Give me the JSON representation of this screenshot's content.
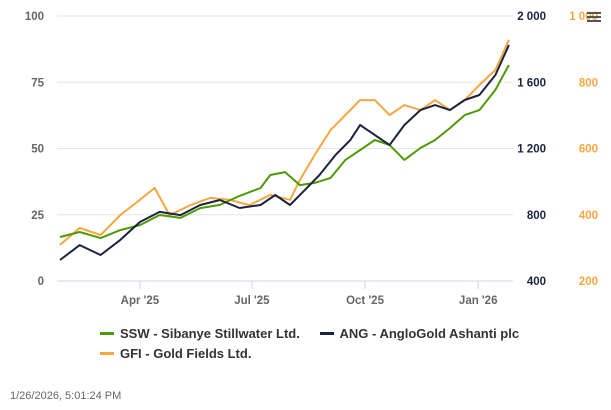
{
  "chart_data": {
    "type": "line",
    "title": "",
    "x_unit": "days since 2025-01-26",
    "x_ticks": [
      {
        "label": "Apr '25",
        "day": 65
      },
      {
        "label": "Jul '25",
        "day": 156
      },
      {
        "label": "Oct '25",
        "day": 248
      },
      {
        "label": "Jan '26",
        "day": 340
      }
    ],
    "axes": {
      "left": {
        "range": [
          0,
          100
        ],
        "ticks": [
          "0",
          "25",
          "50",
          "75",
          "100"
        ],
        "tick_values": [
          0,
          25,
          50,
          75,
          100
        ],
        "color": "#666666"
      },
      "right1": {
        "range": [
          400,
          2000
        ],
        "ticks": [
          "400",
          "800",
          "1 200",
          "1 600",
          "2 000"
        ],
        "tick_values": [
          400,
          800,
          1200,
          1600,
          2000
        ],
        "color": "#1a2340"
      },
      "right2": {
        "range": [
          200,
          1000
        ],
        "ticks": [
          "200",
          "400",
          "600",
          "800",
          "1 000"
        ],
        "tick_values": [
          200,
          400,
          600,
          800,
          1000
        ],
        "color": "#f5a742"
      }
    },
    "grid": true,
    "legend_position": "bottom",
    "series": [
      {
        "name": "SSW - Sibanye Stillwater Ltd.",
        "color": "#4e9a06",
        "axis": "left",
        "x": [
          0,
          16,
          33,
          49,
          65,
          81,
          98,
          114,
          130,
          146,
          163,
          171,
          183,
          195,
          207,
          220,
          232,
          244,
          256,
          268,
          280,
          293,
          305,
          317,
          329,
          341,
          354,
          365
        ],
        "y": [
          16.6,
          18.5,
          16.2,
          19.2,
          21.1,
          24.9,
          23.8,
          27.5,
          28.7,
          32.1,
          35.1,
          40,
          41.1,
          36.2,
          37,
          38.9,
          45.7,
          49.4,
          53.2,
          51.3,
          45.7,
          50.2,
          53.2,
          57.7,
          62.6,
          64.5,
          72.1,
          81.5
        ]
      },
      {
        "name": "ANG - AngloGold Ashanti plc",
        "color": "#1a2340",
        "axis": "right1",
        "x": [
          0,
          16,
          33,
          49,
          65,
          81,
          98,
          114,
          130,
          146,
          163,
          175,
          187,
          199,
          211,
          224,
          236,
          244,
          256,
          268,
          280,
          293,
          305,
          317,
          329,
          341,
          354,
          365
        ],
        "y": [
          527,
          617,
          557,
          648,
          756,
          817,
          798,
          859,
          889,
          841,
          859,
          919,
          859,
          949,
          1040,
          1161,
          1251,
          1342,
          1281,
          1221,
          1342,
          1432,
          1462,
          1432,
          1493,
          1523,
          1644,
          1825
        ]
      },
      {
        "name": "GFI - Gold Fields Ltd.",
        "color": "#f5a742",
        "axis": "right2",
        "x": [
          0,
          16,
          33,
          49,
          65,
          77,
          89,
          106,
          122,
          138,
          154,
          171,
          187,
          195,
          207,
          220,
          232,
          244,
          256,
          268,
          280,
          293,
          305,
          317,
          329,
          341,
          354,
          365
        ],
        "y": [
          309,
          360,
          339,
          399,
          445,
          481,
          399,
          429,
          451,
          445,
          429,
          460,
          445,
          505,
          580,
          656,
          701,
          746,
          746,
          701,
          731,
          716,
          746,
          716,
          746,
          792,
          837,
          928
        ]
      }
    ]
  },
  "timestamp": "1/26/2026, 5:01:24 PM"
}
